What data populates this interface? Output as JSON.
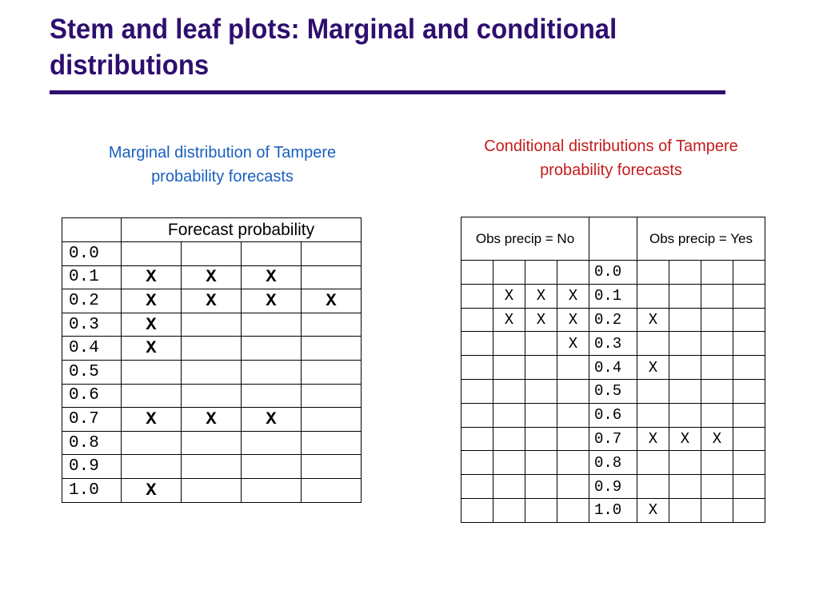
{
  "slide": {
    "title": "Stem and leaf plots: Marginal and conditional distributions",
    "colors": {
      "title": "#2e0f6e",
      "marginal_caption": "#1a5fc0",
      "conditional_caption": "#c41c1c"
    }
  },
  "marginal": {
    "caption": "Marginal distribution of Tampere probability forecasts",
    "header": "Forecast probability",
    "rows": [
      {
        "stem": "0.0",
        "leaves": [
          "",
          "",
          "",
          ""
        ]
      },
      {
        "stem": "0.1",
        "leaves": [
          "X",
          "X",
          "X",
          ""
        ]
      },
      {
        "stem": "0.2",
        "leaves": [
          "X",
          "X",
          "X",
          "X"
        ]
      },
      {
        "stem": "0.3",
        "leaves": [
          "X",
          "",
          "",
          ""
        ]
      },
      {
        "stem": "0.4",
        "leaves": [
          "X",
          "",
          "",
          ""
        ]
      },
      {
        "stem": "0.5",
        "leaves": [
          "",
          "",
          "",
          ""
        ]
      },
      {
        "stem": "0.6",
        "leaves": [
          "",
          "",
          "",
          ""
        ]
      },
      {
        "stem": "0.7",
        "leaves": [
          "X",
          "X",
          "X",
          ""
        ]
      },
      {
        "stem": "0.8",
        "leaves": [
          "",
          "",
          "",
          ""
        ]
      },
      {
        "stem": "0.9",
        "leaves": [
          "",
          "",
          "",
          ""
        ]
      },
      {
        "stem": "1.0",
        "leaves": [
          "X",
          "",
          "",
          ""
        ]
      }
    ]
  },
  "conditional": {
    "caption": "Conditional distributions of Tampere probability forecasts",
    "header_no": "Obs precip = No",
    "header_yes": "Obs precip = Yes",
    "rows": [
      {
        "no": [
          "",
          "",
          "",
          ""
        ],
        "stem": "0.0",
        "yes": [
          "",
          "",
          "",
          ""
        ]
      },
      {
        "no": [
          "",
          "X",
          "X",
          "X"
        ],
        "stem": "0.1",
        "yes": [
          "",
          "",
          "",
          ""
        ]
      },
      {
        "no": [
          "",
          "X",
          "X",
          "X"
        ],
        "stem": "0.2",
        "yes": [
          "X",
          "",
          "",
          ""
        ]
      },
      {
        "no": [
          "",
          "",
          "",
          "X"
        ],
        "stem": "0.3",
        "yes": [
          "",
          "",
          "",
          ""
        ]
      },
      {
        "no": [
          "",
          "",
          "",
          ""
        ],
        "stem": "0.4",
        "yes": [
          "X",
          "",
          "",
          ""
        ]
      },
      {
        "no": [
          "",
          "",
          "",
          ""
        ],
        "stem": "0.5",
        "yes": [
          "",
          "",
          "",
          ""
        ]
      },
      {
        "no": [
          "",
          "",
          "",
          ""
        ],
        "stem": "0.6",
        "yes": [
          "",
          "",
          "",
          ""
        ]
      },
      {
        "no": [
          "",
          "",
          "",
          ""
        ],
        "stem": "0.7",
        "yes": [
          "X",
          "X",
          "X",
          ""
        ]
      },
      {
        "no": [
          "",
          "",
          "",
          ""
        ],
        "stem": "0.8",
        "yes": [
          "",
          "",
          "",
          ""
        ]
      },
      {
        "no": [
          "",
          "",
          "",
          ""
        ],
        "stem": "0.9",
        "yes": [
          "",
          "",
          "",
          ""
        ]
      },
      {
        "no": [
          "",
          "",
          "",
          ""
        ],
        "stem": "1.0",
        "yes": [
          "X",
          "",
          "",
          ""
        ]
      }
    ]
  }
}
